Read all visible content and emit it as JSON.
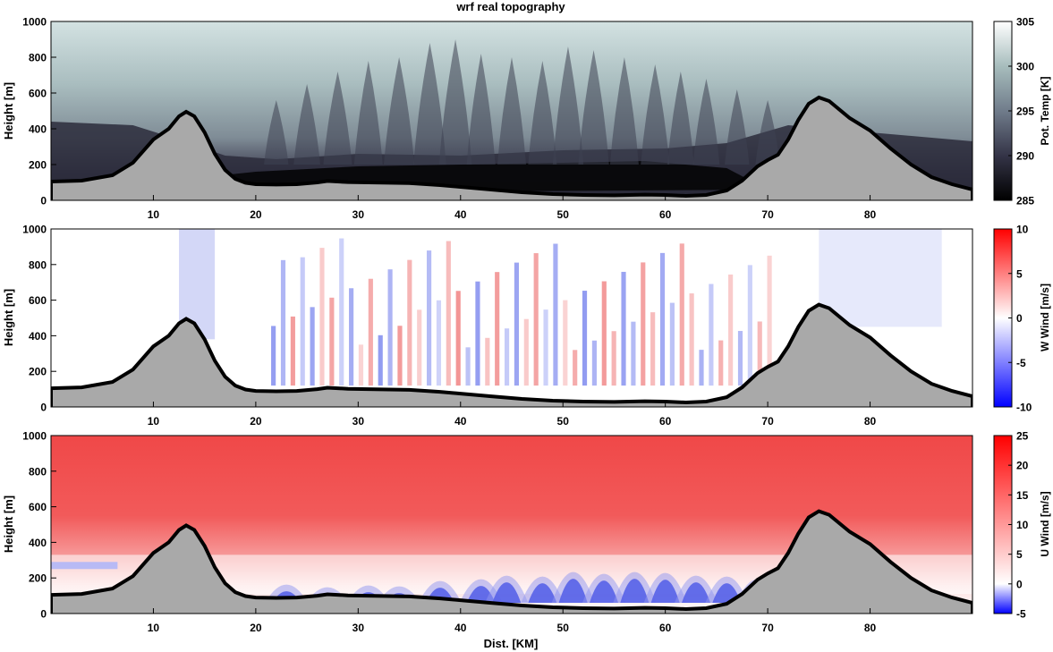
{
  "figure": {
    "title": "wrf real topography",
    "xlabel": "Dist. [KM]"
  },
  "chart_data": [
    {
      "type": "heatmap",
      "name": "potential-temperature",
      "title": "wrf real topography",
      "xlabel": "",
      "ylabel": "Height [m]",
      "xlim": [
        0,
        90
      ],
      "ylim": [
        0,
        1000
      ],
      "xticks": [
        10,
        20,
        30,
        40,
        50,
        60,
        70,
        80
      ],
      "yticks": [
        0,
        200,
        400,
        600,
        800,
        1000
      ],
      "colorbar": {
        "label": "Pot. Temp [K]",
        "range": [
          285,
          305
        ],
        "ticks": [
          285,
          290,
          295,
          300,
          305
        ],
        "colormap": "bone"
      }
    },
    {
      "type": "heatmap",
      "name": "vertical-wind",
      "xlabel": "",
      "ylabel": "Height [m]",
      "xlim": [
        0,
        90
      ],
      "ylim": [
        0,
        1000
      ],
      "xticks": [
        10,
        20,
        30,
        40,
        50,
        60,
        70,
        80
      ],
      "yticks": [
        0,
        200,
        400,
        600,
        800,
        1000
      ],
      "colorbar": {
        "label": "W Wind [m/s]",
        "range": [
          -10,
          10
        ],
        "ticks": [
          -10,
          -5,
          0,
          5,
          10
        ],
        "colormap": "blue-white-red"
      }
    },
    {
      "type": "heatmap",
      "name": "horizontal-wind",
      "xlabel": "Dist. [KM]",
      "ylabel": "Height [m]",
      "xlim": [
        0,
        90
      ],
      "ylim": [
        0,
        1000
      ],
      "xticks": [
        10,
        20,
        30,
        40,
        50,
        60,
        70,
        80
      ],
      "yticks": [
        0,
        200,
        400,
        600,
        800,
        1000
      ],
      "colorbar": {
        "label": "U Wind [m/s]",
        "range": [
          -5,
          25
        ],
        "ticks": [
          -5,
          0,
          5,
          10,
          15,
          20,
          25
        ],
        "colormap": "blue-white-red"
      }
    }
  ],
  "topography": {
    "x": [
      0,
      3,
      6,
      8,
      10,
      11.5,
      12.5,
      13.2,
      14,
      15,
      16,
      17,
      18,
      19,
      20,
      22,
      24,
      26,
      27,
      29,
      31,
      33,
      35,
      38,
      40,
      43,
      46,
      49,
      52,
      55,
      58,
      60,
      62,
      64,
      66,
      67.5,
      69,
      70,
      71,
      72,
      73,
      74,
      75,
      76,
      78,
      80,
      82,
      84,
      86,
      88,
      90
    ],
    "y": [
      105,
      110,
      140,
      210,
      340,
      400,
      470,
      495,
      470,
      380,
      260,
      170,
      120,
      98,
      90,
      88,
      90,
      100,
      108,
      102,
      100,
      98,
      96,
      85,
      75,
      60,
      45,
      35,
      30,
      28,
      32,
      30,
      25,
      30,
      55,
      110,
      190,
      225,
      255,
      340,
      450,
      540,
      575,
      555,
      460,
      390,
      290,
      200,
      130,
      90,
      60
    ]
  },
  "colors": {
    "terrain": "#a9a9a9",
    "terrain_outline": "#000000",
    "temp_top": "#c4d6d6",
    "temp_low": "#101018"
  }
}
